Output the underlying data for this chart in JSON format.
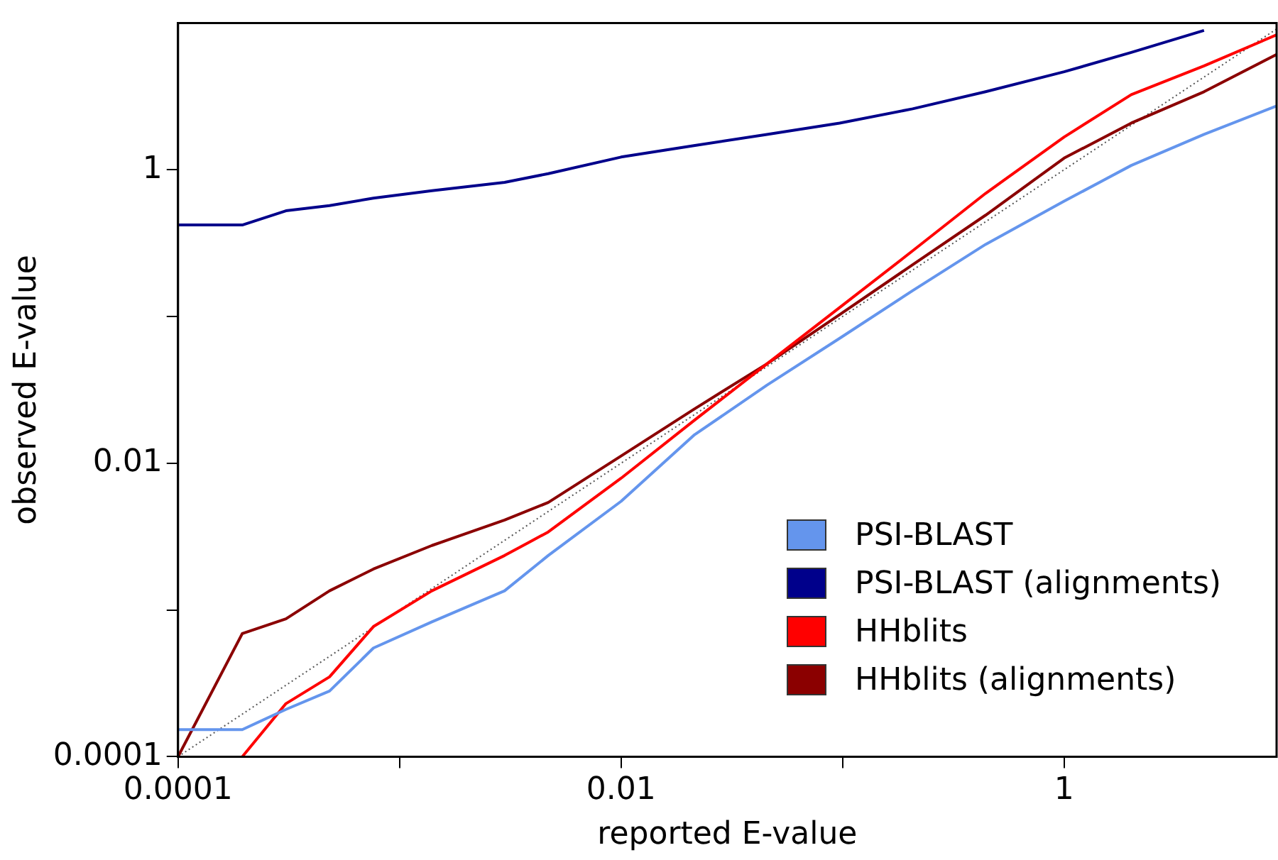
{
  "chart_data": {
    "type": "line",
    "xlabel": "reported E-value",
    "ylabel": "observed E-value",
    "log": "xy",
    "grid": false,
    "legend": "bottom right",
    "marker": "none",
    "xlim": [
      0.0001,
      9.1
    ],
    "ylim": [
      0.0001,
      10
    ],
    "xticks": [
      0.0001,
      {
        "value": 0.001,
        "label": null
      },
      0.01,
      {
        "value": 0.1,
        "label": null
      },
      1
    ],
    "yticks": [
      0.0001,
      {
        "value": 0.001,
        "label": null
      },
      0.01,
      {
        "value": 0.1,
        "label": null
      },
      1
    ],
    "x": [
      0.0001,
      0.000195,
      0.000307,
      0.000483,
      0.000762,
      0.0014,
      0.00298,
      0.00469,
      0.01,
      0.0213,
      0.0455,
      0.097,
      0.207,
      0.442,
      1,
      2.01,
      4.28,
      9.1
    ],
    "series": [
      {
        "name": "PSI-BLAST",
        "color": "#6495ed",
        "values": [
          0.000153,
          0.000153,
          0.00021,
          0.00028,
          0.00055,
          0.00083,
          0.00135,
          0.00235,
          0.0055,
          0.0155,
          0.034,
          0.071,
          0.15,
          0.31,
          0.61,
          1.07,
          1.74,
          2.72
        ]
      },
      {
        "name": "PSI-BLAST (alignments)",
        "color": "#00008b",
        "values": [
          0.42,
          0.42,
          0.525,
          0.57,
          0.64,
          0.72,
          0.82,
          0.94,
          1.22,
          1.46,
          1.74,
          2.08,
          2.6,
          3.4,
          4.65,
          6.3,
          8.9,
          null
        ]
      },
      {
        "name": "HHblits",
        "color": "#ff0000",
        "values": [
          null,
          0.0001,
          0.00023,
          0.00035,
          0.00077,
          0.00135,
          0.00235,
          0.0034,
          0.0079,
          0.0195,
          0.0475,
          0.115,
          0.28,
          0.69,
          1.67,
          3.25,
          5.1,
          8.3
        ]
      },
      {
        "name": "HHblits (alignments)",
        "color": "#8b0000",
        "values": [
          0.0001,
          0.00069,
          0.00087,
          0.00135,
          0.0019,
          0.00275,
          0.0041,
          0.0054,
          0.0112,
          0.0233,
          0.0475,
          0.103,
          0.225,
          0.49,
          1.2,
          2.08,
          3.4,
          6.1
        ]
      },
      {
        "color": "#555555",
        "line_style": "dotted",
        "x": [
          0.0001,
          9.1
        ],
        "values": [
          0.0001,
          9.1
        ]
      }
    ]
  }
}
